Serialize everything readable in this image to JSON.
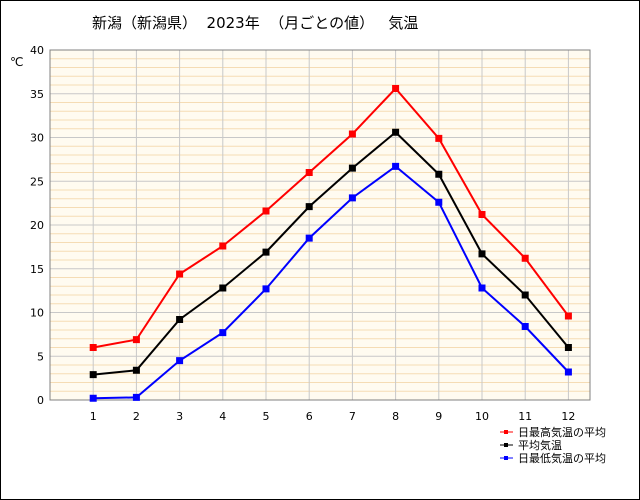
{
  "chart_data": {
    "type": "line",
    "title": "新潟（新潟県）  2023年  （月ごとの値）   気温",
    "ylabel": "℃",
    "xlabel": "",
    "categories": [
      "1",
      "2",
      "3",
      "4",
      "5",
      "6",
      "7",
      "8",
      "9",
      "10",
      "11",
      "12"
    ],
    "ylim": [
      0,
      40
    ],
    "yticks": [
      0,
      5,
      10,
      15,
      20,
      25,
      30,
      35,
      40
    ],
    "grid": true,
    "legend_position": "bottom-right",
    "series": [
      {
        "name": "日最高気温の平均",
        "color": "#ff0000",
        "values": [
          6.0,
          6.9,
          14.4,
          17.6,
          21.6,
          26.0,
          30.4,
          35.6,
          29.9,
          21.2,
          16.2,
          9.6
        ]
      },
      {
        "name": "平均気温",
        "color": "#000000",
        "values": [
          2.9,
          3.4,
          9.2,
          12.8,
          16.9,
          22.1,
          26.5,
          30.6,
          25.8,
          16.7,
          12.0,
          6.0
        ]
      },
      {
        "name": "日最低気温の平均",
        "color": "#0000ff",
        "values": [
          0.2,
          0.3,
          4.5,
          7.7,
          12.7,
          18.5,
          23.1,
          26.7,
          22.6,
          12.8,
          8.4,
          3.2
        ]
      }
    ]
  }
}
